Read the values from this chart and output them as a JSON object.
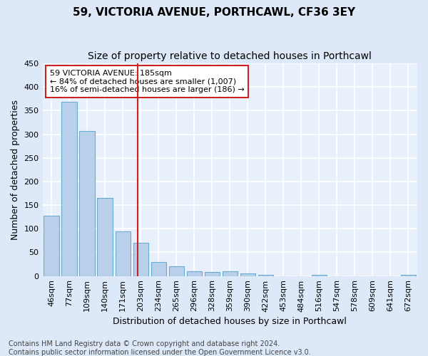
{
  "title": "59, VICTORIA AVENUE, PORTHCAWL, CF36 3EY",
  "subtitle": "Size of property relative to detached houses in Porthcawl",
  "xlabel": "Distribution of detached houses by size in Porthcawl",
  "ylabel": "Number of detached properties",
  "categories": [
    "46sqm",
    "77sqm",
    "109sqm",
    "140sqm",
    "171sqm",
    "203sqm",
    "234sqm",
    "265sqm",
    "296sqm",
    "328sqm",
    "359sqm",
    "390sqm",
    "422sqm",
    "453sqm",
    "484sqm",
    "516sqm",
    "547sqm",
    "578sqm",
    "609sqm",
    "641sqm",
    "672sqm"
  ],
  "values": [
    128,
    368,
    307,
    165,
    95,
    70,
    30,
    20,
    10,
    8,
    10,
    5,
    3,
    0,
    0,
    3,
    0,
    0,
    0,
    0,
    3
  ],
  "bar_color": "#b8d0ea",
  "bar_edge_color": "#6aabd2",
  "background_color": "#e8f0fb",
  "grid_color": "#ffffff",
  "vline_x_index": 4.85,
  "vline_color": "#cc2222",
  "annotation_text": "59 VICTORIA AVENUE: 185sqm\n← 84% of detached houses are smaller (1,007)\n16% of semi-detached houses are larger (186) →",
  "annotation_box_color": "#ffffff",
  "annotation_box_edge_color": "#cc2222",
  "footer_line1": "Contains HM Land Registry data © Crown copyright and database right 2024.",
  "footer_line2": "Contains public sector information licensed under the Open Government Licence v3.0.",
  "ylim": [
    0,
    450
  ],
  "yticks": [
    0,
    50,
    100,
    150,
    200,
    250,
    300,
    350,
    400,
    450
  ],
  "title_fontsize": 11,
  "subtitle_fontsize": 10,
  "ylabel_fontsize": 9,
  "xlabel_fontsize": 9,
  "tick_fontsize": 8,
  "annotation_fontsize": 8,
  "footer_fontsize": 7
}
